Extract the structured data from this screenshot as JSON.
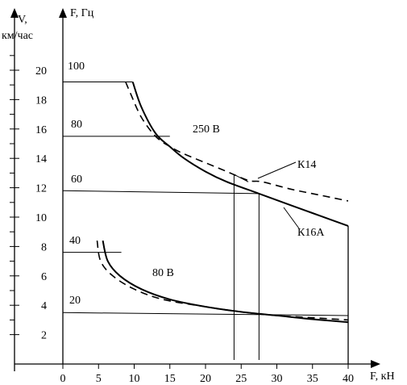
{
  "chart_data": {
    "type": "line",
    "title": "",
    "y_axis_label_line1": "V,",
    "y_axis_label_line2": "км/час",
    "freq_axis_label": "F, Гц",
    "x_axis_label": "F, кН",
    "x_ticks": [
      0,
      5,
      10,
      15,
      20,
      25,
      30,
      35,
      40
    ],
    "y_ticks": [
      2,
      4,
      6,
      8,
      10,
      12,
      14,
      16,
      18,
      20
    ],
    "xlim": [
      0,
      43
    ],
    "ylim": [
      0,
      21.5
    ],
    "grid": false,
    "frequency_lines": [
      {
        "label": "100",
        "v": 19.2,
        "x_end": 9.8
      },
      {
        "label": "80",
        "v": 15.5,
        "x_end": 15
      },
      {
        "label": "60",
        "v": 11.8,
        "v_end": 11.6,
        "x_end": 27.5
      },
      {
        "label": "40",
        "v": 7.6,
        "x_end": 8.2
      },
      {
        "label": "20",
        "v": 3.5,
        "v_end": 3.3,
        "x_end": 40
      }
    ],
    "series": [
      {
        "name": "K16A",
        "style": "solid",
        "x": [
          9.8,
          11,
          13,
          15,
          17,
          20,
          23,
          27.5,
          32,
          36,
          40
        ],
        "y": [
          19.2,
          17.5,
          15.7,
          14.8,
          14,
          13.1,
          12.4,
          11.6,
          10.8,
          10.1,
          9.4
        ]
      },
      {
        "name": "K14",
        "style": "dashed",
        "x": [
          8.8,
          9.5,
          11,
          13,
          15,
          17,
          20,
          23,
          26,
          28,
          32,
          36,
          40
        ],
        "y": [
          19.2,
          18.4,
          16.8,
          15.5,
          14.8,
          14.3,
          13.7,
          13.1,
          12.5,
          12.4,
          11.9,
          11.5,
          11.1
        ]
      },
      {
        "name": "",
        "style": "solid",
        "x": [
          5.6,
          6.3,
          8,
          11,
          15,
          20,
          25,
          30,
          35,
          40
        ],
        "y": [
          8.4,
          7.0,
          6.0,
          5.1,
          4.4,
          3.9,
          3.55,
          3.3,
          3.05,
          2.85
        ]
      },
      {
        "name": "",
        "style": "dashed",
        "x": [
          4.8,
          5.3,
          7,
          10,
          14,
          20,
          25,
          30,
          35,
          40
        ],
        "y": [
          8.4,
          7.0,
          6.0,
          5.1,
          4.4,
          3.9,
          3.55,
          3.3,
          3.15,
          3.0
        ]
      }
    ],
    "vertical_lines": [
      24,
      27.5
    ],
    "right_boundary": 40,
    "voltage_labels": [
      "250 В",
      "80 В"
    ],
    "series_labels": [
      "К14",
      "К16А"
    ]
  }
}
